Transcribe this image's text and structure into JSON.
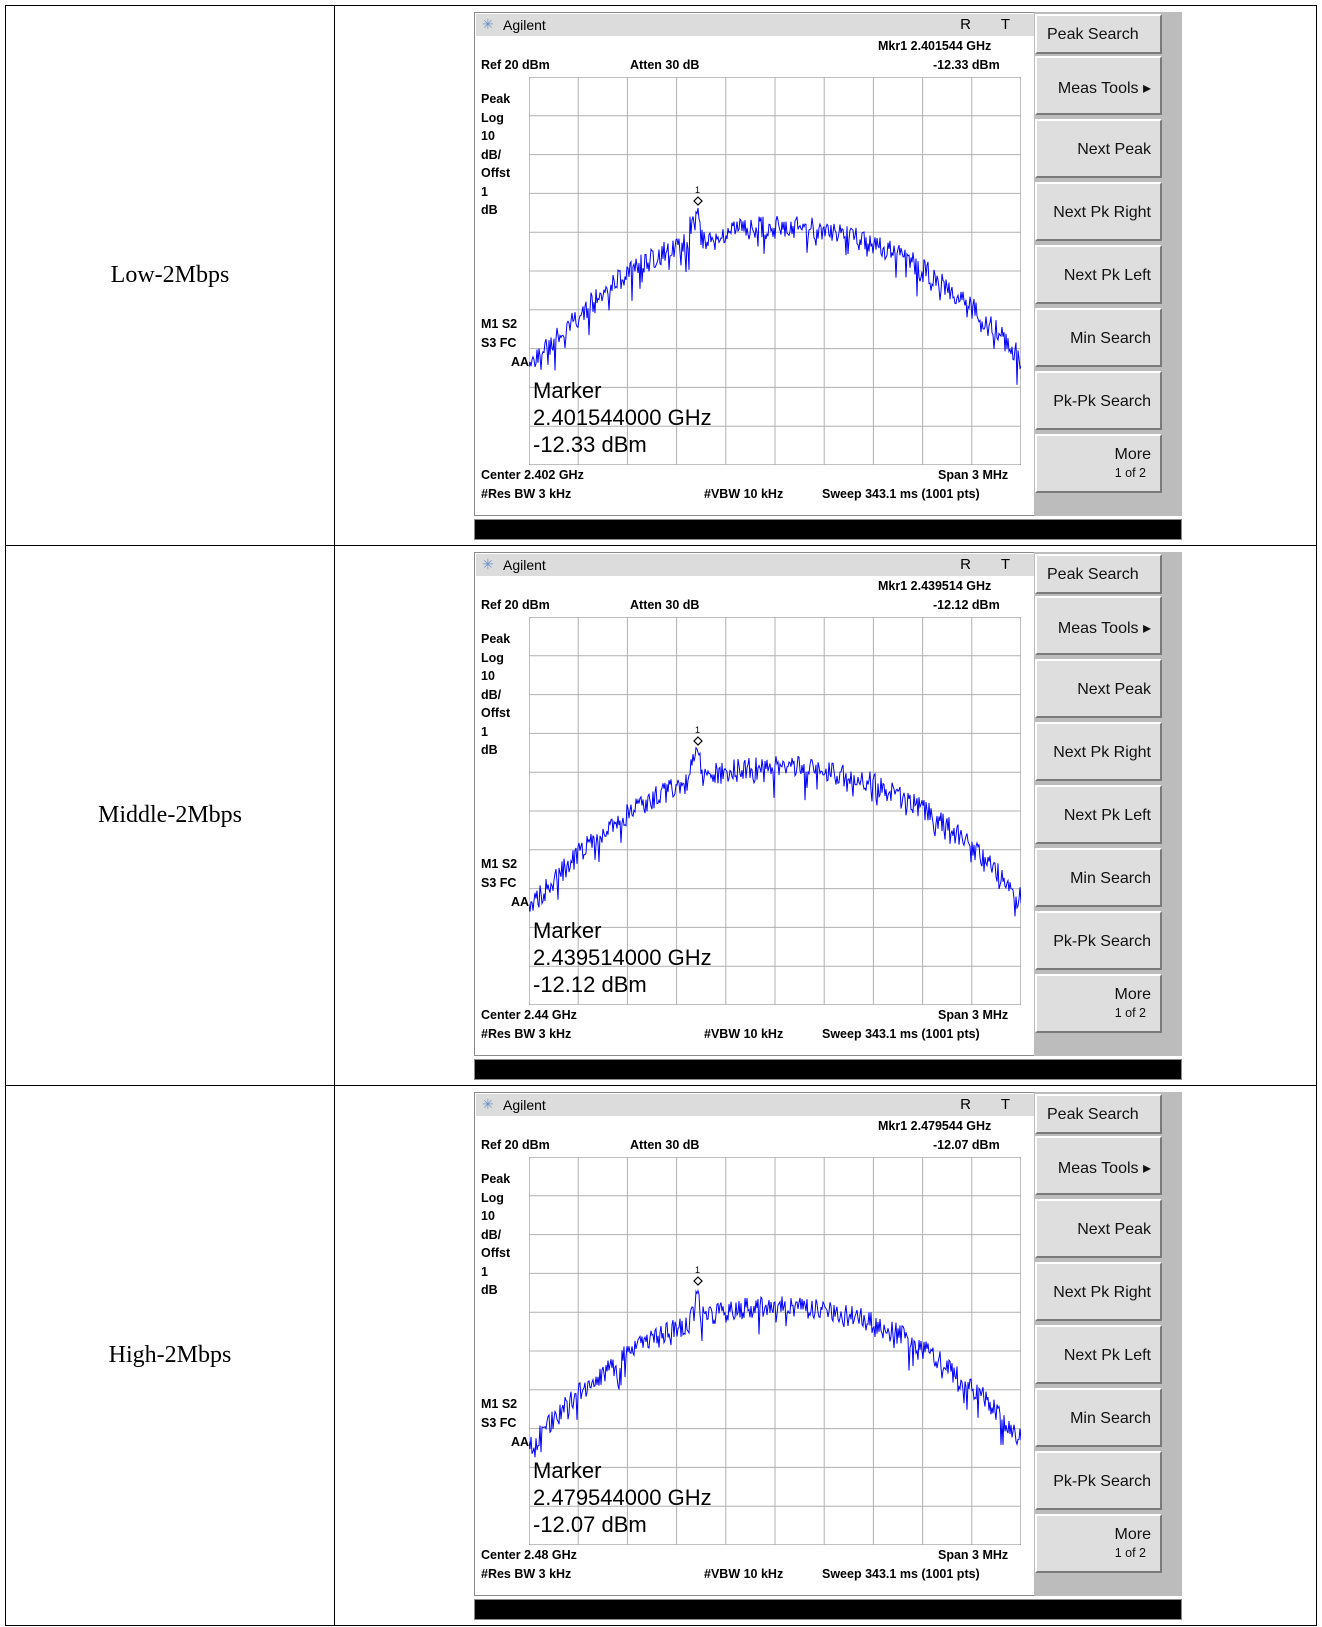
{
  "rows": [
    {
      "label": "Low-2Mbps",
      "mkr_freq": "Mkr1  2.401544 GHz",
      "mkr_level": "-12.33 dBm",
      "center": "Center 2.402 GHz",
      "marker_freq": "2.401544000 GHz",
      "marker_level": "-12.33 dBm"
    },
    {
      "label": "Middle-2Mbps",
      "mkr_freq": "Mkr1  2.439514 GHz",
      "mkr_level": "-12.12 dBm",
      "center": "Center 2.44 GHz",
      "marker_freq": "2.439514000 GHz",
      "marker_level": "-12.12 dBm"
    },
    {
      "label": "High-2Mbps",
      "mkr_freq": "Mkr1  2.479544 GHz",
      "mkr_level": "-12.07 dBm",
      "center": "Center 2.48 GHz",
      "marker_freq": "2.479544000 GHz",
      "marker_level": "-12.07 dBm"
    }
  ],
  "analyzer": {
    "brand": "Agilent",
    "rt": "R T",
    "ref": "Ref 20 dBm",
    "atten": "Atten 30 dB",
    "left_labels": [
      "Peak",
      "Log",
      "10",
      "dB/",
      "Offst",
      "1",
      "dB"
    ],
    "left_labels2": [
      "M1  S2",
      "S3  FC",
      "AA"
    ],
    "marker_title": "Marker",
    "marker_id": "1",
    "span": "Span 3 MHz",
    "res_bw": "#Res BW 3 kHz",
    "vbw": "#VBW 10 kHz",
    "sweep": "Sweep 343.1 ms (1001 pts)",
    "softkeys": [
      "Peak Search",
      "Meas Tools ▸",
      "Next Peak",
      "Next Pk Right",
      "Next Pk Left",
      "Min Search",
      "Pk-Pk Search"
    ],
    "more": "More",
    "more_page": "1 of 2",
    "trace_color": "#0000ff"
  }
}
